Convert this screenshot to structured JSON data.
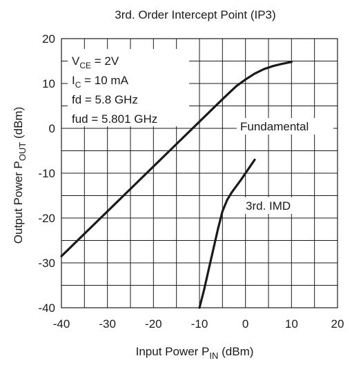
{
  "chart_data": {
    "type": "line",
    "title": "3rd. Order Intercept Point (IP3)",
    "xlabel": {
      "main": "Input Power   P",
      "sub": "IN",
      "unit": " (dBm)"
    },
    "ylabel": {
      "main": "Output Power   P",
      "sub": "OUT",
      "unit": " (dBm)"
    },
    "xlim": [
      -40,
      20
    ],
    "ylim": [
      -40,
      20
    ],
    "xticks": [
      -40,
      -30,
      -20,
      -10,
      0,
      10,
      20
    ],
    "yticks": [
      -40,
      -30,
      -20,
      -10,
      0,
      10,
      20
    ],
    "grid": true,
    "conditions": [
      {
        "main": "V",
        "sub": "CE",
        "rest": " = 2V"
      },
      {
        "main": "I",
        "sub": "C",
        "rest": " = 10 mA"
      },
      {
        "main": "fd = 5.8 GHz",
        "sub": "",
        "rest": ""
      },
      {
        "main": "fud = 5.801 GHz",
        "sub": "",
        "rest": ""
      }
    ],
    "series": [
      {
        "name": "Fundamental",
        "x": [
          -40,
          -30,
          -20,
          -10,
          -5,
          -2,
          0,
          2,
          4,
          6,
          8,
          10
        ],
        "y": [
          -28.5,
          -18.5,
          -8.5,
          1.5,
          6.5,
          9.4,
          10.9,
          12.2,
          13.2,
          13.9,
          14.4,
          14.8
        ]
      },
      {
        "name": "3rd. IMD",
        "x": [
          -10,
          -9,
          -8,
          -7,
          -6,
          -5,
          -4,
          -3,
          -2,
          -1,
          0,
          1,
          2
        ],
        "y": [
          -40,
          -36,
          -31.5,
          -27,
          -22.5,
          -18.5,
          -16,
          -14.3,
          -12.9,
          -11.5,
          -10,
          -8.5,
          -7
        ]
      }
    ]
  }
}
